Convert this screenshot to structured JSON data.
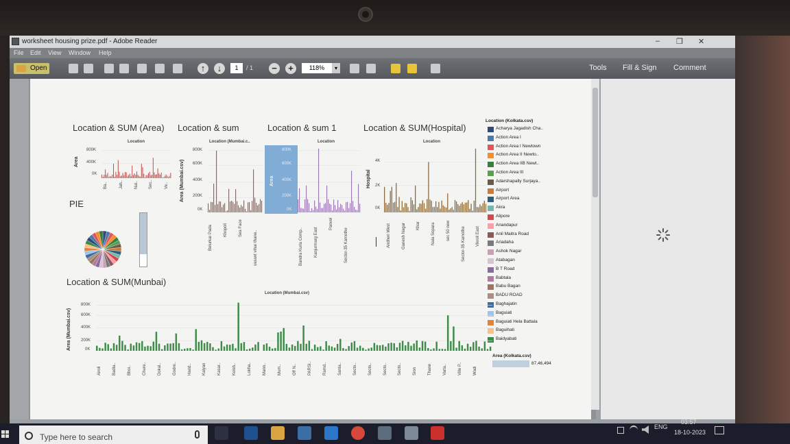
{
  "window": {
    "title": "worksheet housing prize.pdf - Adobe Reader",
    "menus": [
      "File",
      "Edit",
      "View",
      "Window",
      "Help"
    ],
    "open_label": "Open",
    "page_current": "1",
    "page_total": "/ 1",
    "zoom": "118%",
    "right_tools": [
      "Tools",
      "Fill & Sign",
      "Comment"
    ],
    "controls": [
      "–",
      "❐",
      "✕"
    ]
  },
  "colors": {
    "area_chart": "#c0504d",
    "sum_chart": "#b55a4e",
    "sum1_chart": "#9b7bb0",
    "sum1_highlight": "#5e9bd1",
    "hospital_chart": "#8b6a3a",
    "mumbai_chart": "#3f8c4a"
  },
  "sheets": {
    "area": {
      "title": "Location & SUM (Area)",
      "col_header": "Location",
      "y_label": "Area",
      "y_ticks": [
        "800K",
        "400K",
        "0K"
      ],
      "x_ticks": [
        "Ba..",
        "Jah..",
        "Nal..",
        "Sec..",
        "Ve.."
      ]
    },
    "sum": {
      "title": "Location & sum",
      "col_header": "Location (Mumbai.c..",
      "y_label": "Area (Mumbai.csv)",
      "y_ticks": [
        "800K",
        "600K",
        "400K",
        "200K",
        "0K"
      ],
      "x_ticks": [
        "Belurkar Pada",
        "Khopoli",
        "Sea Face",
        "vasant vihar thane.."
      ]
    },
    "sum1": {
      "title": "Location & sum 1",
      "col_header": "Location",
      "y_label": "Area",
      "y_ticks": [
        "800K",
        "600K",
        "400K",
        "200K",
        "0K"
      ],
      "x_ticks": [
        "Bandra Kurla Comp..",
        "Kanjurmarg East",
        "Panvel",
        "Sector-35 Kamothe"
      ]
    },
    "hospital": {
      "title": "Location & SUM(Hospital)",
      "col_header": "Location",
      "y_label": "Hospital",
      "y_ticks": [
        "4K",
        "2K",
        "0K"
      ],
      "x_ticks": [
        "Andheri West",
        "Ganesh Nagar",
        "Khar",
        "Nala Sopara",
        "sec 50 new",
        "Sector-35 Kamothe",
        "Vikroli East"
      ]
    },
    "pie": {
      "title": "PIE"
    },
    "mumbai": {
      "title": "Location & SUM(Munbai)",
      "col_header": "Location (Mumbai.csv)",
      "y_label": "Area (Mumbai.csv)",
      "y_ticks": [
        "800K",
        "600K",
        "400K",
        "200K",
        "0K"
      ],
      "x_ticks": [
        "Airoli",
        "Badla..",
        "Bhoi..",
        "Chure..",
        "Dokal..",
        "Godre..",
        "Harid..",
        "Kalyan",
        "Kasar..",
        "Kolsh..",
        "Lokha..",
        "Mann..",
        "Mum..",
        "Off N..",
        "PARSI..",
        "Ramd..",
        "Santa..",
        "Secto..",
        "Secto..",
        "Secto..",
        "Secto..",
        "Sion",
        "Thane",
        "Varta..",
        "Ville P..",
        "Wadi"
      ]
    }
  },
  "legend": {
    "title": "Location (Kolkata.csv)",
    "items": [
      {
        "label": "Acharya Jagadish Cha..",
        "color": "#2f4b7c"
      },
      {
        "label": "Action Area I",
        "color": "#4e79a7"
      },
      {
        "label": "Action Area I Newtown",
        "color": "#e15759"
      },
      {
        "label": "Action Area II Newto..",
        "color": "#f28e2b"
      },
      {
        "label": "Action Area IIB Newt..",
        "color": "#3b7d3b"
      },
      {
        "label": "Action Area III",
        "color": "#59a14f"
      },
      {
        "label": "Adarshapally Surjaya..",
        "color": "#6b5b4b"
      },
      {
        "label": "Airport",
        "color": "#c77c3c"
      },
      {
        "label": "Airport Area",
        "color": "#2d5f7a"
      },
      {
        "label": "Akra",
        "color": "#76b7b2"
      },
      {
        "label": "Alipore",
        "color": "#d04a4a"
      },
      {
        "label": "Anandapur",
        "color": "#ff9da7"
      },
      {
        "label": "Anil Maitra Road",
        "color": "#8a5a5a"
      },
      {
        "label": "Ariadaha",
        "color": "#7a7a7a"
      },
      {
        "label": "Ashok Nagar",
        "color": "#c9a0b8"
      },
      {
        "label": "Atabagan",
        "color": "#d8c3d0"
      },
      {
        "label": "B T Road",
        "color": "#8b6a9c"
      },
      {
        "label": "Babtala",
        "color": "#b07aa1"
      },
      {
        "label": "Babu Bagan",
        "color": "#9c755f"
      },
      {
        "label": "BADU ROAD",
        "color": "#a89080"
      },
      {
        "label": "Baghajatin",
        "color": "#3d6e9e"
      },
      {
        "label": "Baguiati",
        "color": "#a0c4e8"
      },
      {
        "label": "Baguiati Hela Battala",
        "color": "#e0843c"
      },
      {
        "label": "Baguihati",
        "color": "#f5c08a"
      },
      {
        "label": "Baidyabati",
        "color": "#3a8a4a"
      }
    ],
    "size_title": "Area (Kolkata.csv)",
    "size_value": "87,46,494"
  },
  "taskbar": {
    "search_placeholder": "Type here to search",
    "lang": "ENG",
    "time": "03:57",
    "date": "18-10-2023"
  }
}
